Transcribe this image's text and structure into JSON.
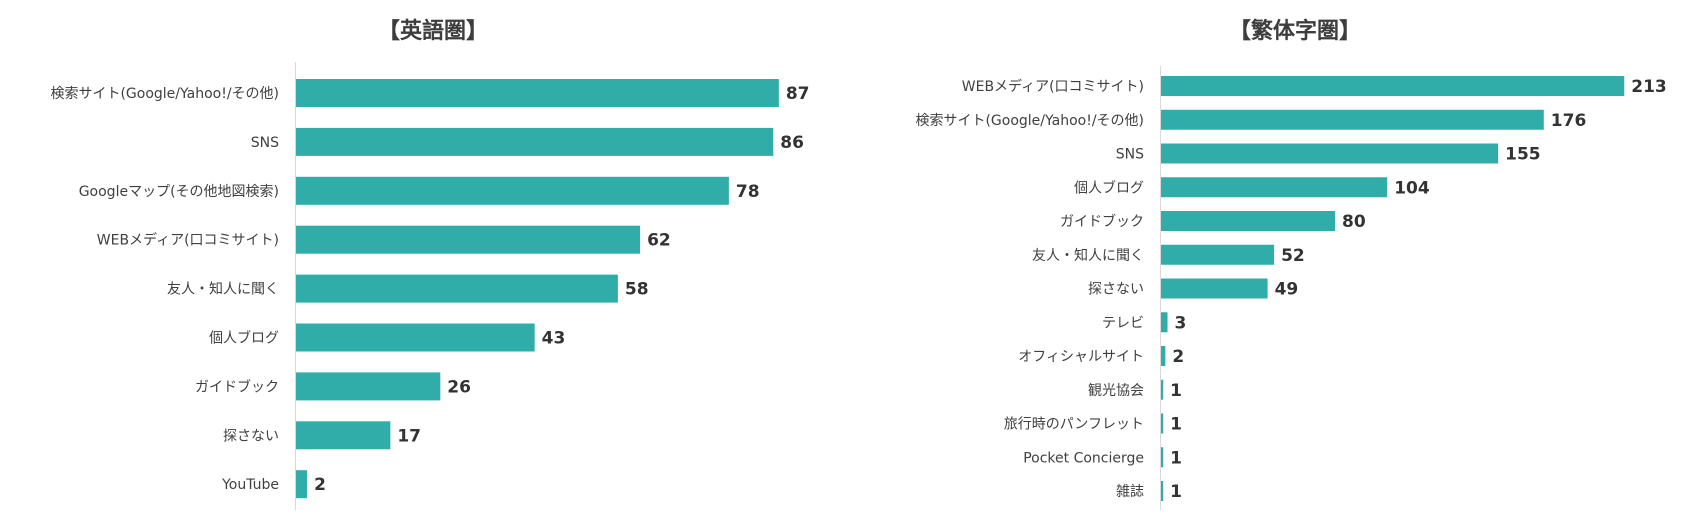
{
  "chart_data": [
    {
      "type": "bar",
      "orientation": "horizontal",
      "title": "【英語圏】",
      "categories": [
        "検索サイト(Google/Yahoo!/その他)",
        "SNS",
        "Googleマップ(その他地図検索)",
        "WEBメディア(口コミサイト)",
        "友人・知人に聞く",
        "個人ブログ",
        "ガイドブック",
        "探さない",
        "YouTube"
      ],
      "values": [
        87,
        86,
        78,
        62,
        58,
        43,
        26,
        17,
        2
      ],
      "bar_color": "#30ADA8",
      "grid": false,
      "legend": "none"
    },
    {
      "type": "bar",
      "orientation": "horizontal",
      "title": "【繁体字圏】",
      "categories": [
        "WEBメディア(口コミサイト)",
        "検索サイト(Google/Yahoo!/その他)",
        "SNS",
        "個人ブログ",
        "ガイドブック",
        "友人・知人に聞く",
        "探さない",
        "テレビ",
        "オフィシャルサイト",
        "観光協会",
        "旅行時のパンフレット",
        "Pocket Concierge",
        "雑誌"
      ],
      "values": [
        213,
        176,
        155,
        104,
        80,
        52,
        49,
        3,
        2,
        1,
        1,
        1,
        1
      ],
      "bar_color": "#30ADA8",
      "grid": false,
      "legend": "none"
    }
  ]
}
